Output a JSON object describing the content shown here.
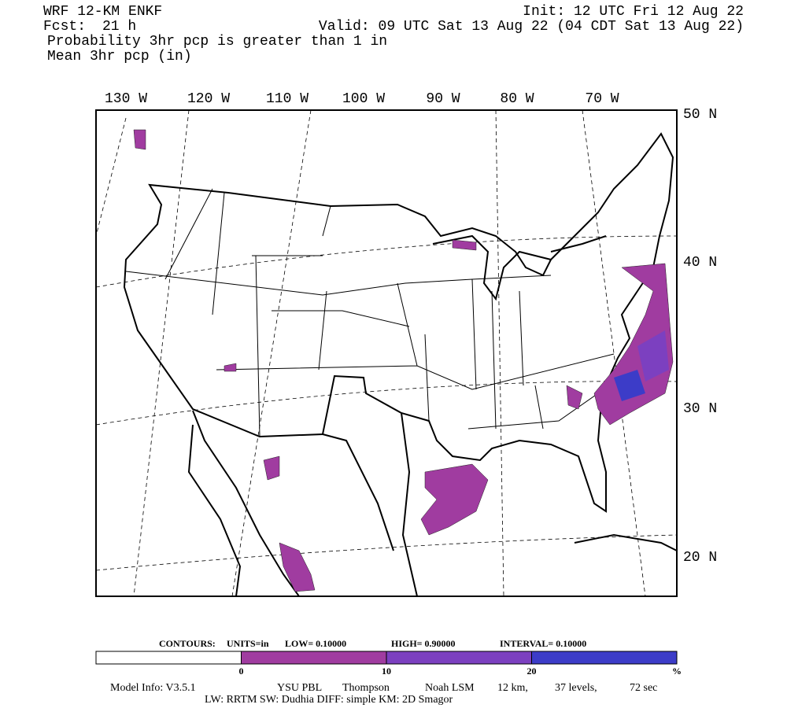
{
  "header": {
    "model": "WRF 12-KM ENKF",
    "init": "Init: 12 UTC Fri 12 Aug 22",
    "fcst_label": "Fcst:",
    "fcst": "21 h",
    "valid": "Valid: 09 UTC Sat 13 Aug 22 (04 CDT Sat 13 Aug 22)",
    "field": "Probability 3hr pcp is greater than 1 in",
    "contour_field": "Mean 3hr pcp (in)"
  },
  "map": {
    "lon_labels": [
      "130 W",
      "120 W",
      "110 W",
      "100 W",
      "90 W",
      "80 W",
      "70 W"
    ],
    "lat_labels": [
      "50 N",
      "40 N",
      "30 N",
      "20 N"
    ]
  },
  "contours": {
    "label": "CONTOURS:",
    "units": "UNITS=in",
    "low": "LOW= 0.10000",
    "high": "HIGH= 0.90000",
    "interval": "INTERVAL= 0.10000"
  },
  "colorbar": {
    "colors": [
      "#ffffff",
      "#a03ca0",
      "#7c40c0",
      "#3c3cc8"
    ],
    "labels": [
      "0",
      "10",
      "20",
      "%"
    ]
  },
  "footer": {
    "model_info": "Model Info: V3.5.1",
    "pbl": "YSU PBL",
    "mp": "Thompson",
    "lsm": "Noah LSM",
    "res": "12 km,",
    "levels": "37 levels,",
    "dt": "72 sec",
    "line2": "LW: RRTM SW: Dudhia  DIFF: simple KM: 2D Smagor"
  }
}
